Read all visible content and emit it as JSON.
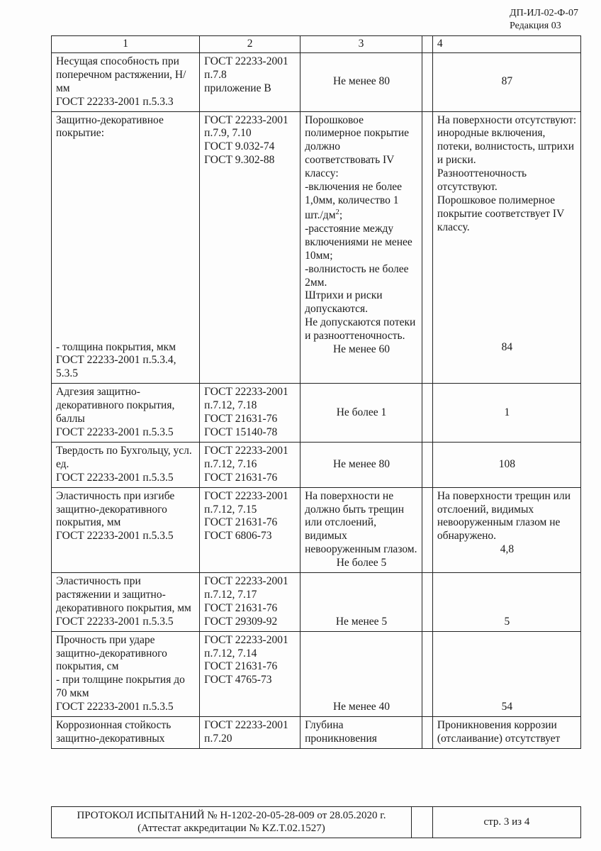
{
  "doc_header": {
    "code": "ДП-ИЛ-02-Ф-07",
    "revision": "Редакция 03"
  },
  "columns": {
    "c1": "1",
    "c2": "2",
    "c3": "3",
    "c4": "4"
  },
  "rows": [
    {
      "param": "Несущая способность при поперечном растяжении, Н/мм\nГОСТ 22233-2001 п.5.3.3",
      "method": "ГОСТ 22233-2001 п.7.8\nприложение В",
      "req": "Не менее 80",
      "req_align": "center-mid",
      "res": "87",
      "res_align": "center-mid"
    },
    {
      "param": "Защитно-декоративное покрытие:",
      "param2": "- толщина покрытия, мкм\nГОСТ 22233-2001 п.5.3.4, 5.3.5",
      "method": "ГОСТ 22233-2001 п.7.9, 7.10\nГОСТ 9.032-74\nГОСТ 9.302-88",
      "req": "Порошковое полимерное покрытие должно соответствовать IV классу:\n-включения не более 1,0мм, количество 1 шт./дм²;\n-расстояние между включениями не менее 10мм;\n-волнистость не более 2мм.\nШтрихи и риски допускаются.\nНе допускаются потеки и разнооттеночность.",
      "req_tail": "Не менее 60",
      "res": "На поверхности отсутствуют: инородные включения, потеки, волнистость, штрихи и риски.\nРазнооттеночность отсутствуют.\nПорошковое полимерное покрытие соответствует IV классу.",
      "res_tail": "84"
    },
    {
      "param": "Адгезия защитно-декоративного покрытия, баллы\nГОСТ 22233-2001 п.5.3.5",
      "method": "ГОСТ 22233-2001 п.7.12, 7.18\nГОСТ 21631-76\nГОСТ 15140-78",
      "req": "Не более 1",
      "req_align": "center-mid",
      "res": "1",
      "res_align": "center-mid"
    },
    {
      "param": "Твердость по Бухгольцу, усл. ед.\nГОСТ 22233-2001 п.5.3.5",
      "method": "ГОСТ 22233-2001 п.7.12, 7.16\nГОСТ 21631-76",
      "req": "Не менее 80",
      "req_align": "center-mid",
      "res": "108",
      "res_align": "center-mid"
    },
    {
      "param": "Эластичность при изгибе защитно-декоративного покрытия, мм\nГОСТ 22233-2001 п.5.3.5",
      "method": "ГОСТ 22233-2001 п.7.12, 7.15\nГОСТ 21631-76\nГОСТ 6806-73",
      "req": "На поверхности не должно быть трещин или отслоений, видимых невооруженным глазом.",
      "req_tail": "Не более 5",
      "res": "На поверхности трещин или отслоений, видимых невооруженным глазом не обнаружено.",
      "res_tail": "4,8"
    },
    {
      "param": "Эластичность при растяжении и защитно-декоративного покрытия, мм\nГОСТ 22233-2001 п.5.3.5",
      "method": "ГОСТ 22233-2001 п.7.12, 7.17\nГОСТ 21631-76\nГОСТ 29309-92",
      "req": "Не менее 5",
      "req_align": "center-bot",
      "res": "5",
      "res_align": "center-bot"
    },
    {
      "param": "Прочность при ударе защитно-декоративного покрытия, см\n- при толщине покрытия до 70 мкм\nГОСТ 22233-2001 п.5.3.5",
      "method": "ГОСТ 22233-2001 п.7.12, 7.14\nГОСТ 21631-76\nГОСТ 4765-73",
      "req": "Не менее 40",
      "req_align": "center-bot",
      "res": "54",
      "res_align": "center-bot"
    },
    {
      "param": "Коррозионная стойкость защитно-декоративных",
      "method": "ГОСТ 22233-2001 п.7.20",
      "req": "Глубина проникновения",
      "res": "Проникновения коррозии (отслаивание) отсутствует"
    }
  ],
  "footer": {
    "line1": "ПРОТОКОЛ ИСПЫТАНИЙ № Н-1202-20-05-28-009 от 28.05.2020 г.",
    "line2": "(Аттестат аккредитации № KZ.T.02.1527)",
    "page": "стр. 3 из 4"
  }
}
